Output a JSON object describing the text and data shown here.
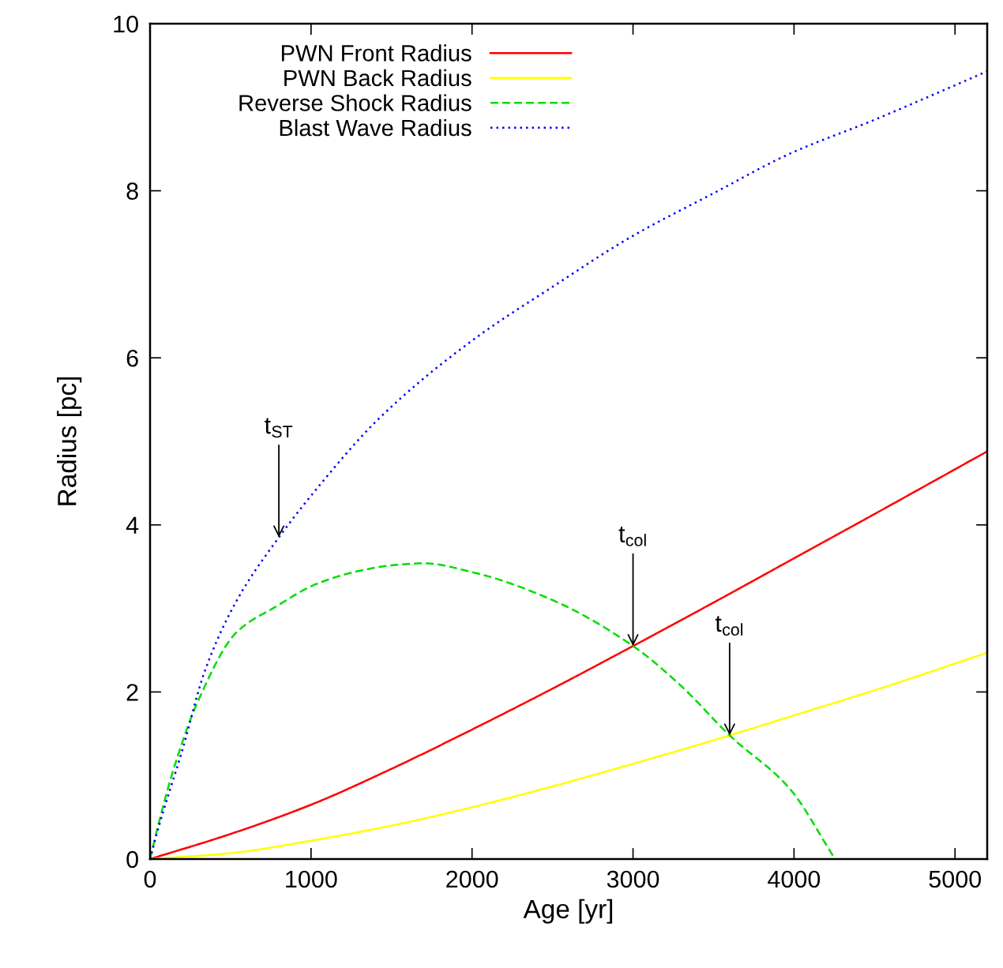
{
  "chart_data": {
    "type": "line",
    "xlabel": "Age [yr]",
    "ylabel": "Radius [pc]",
    "xlim": [
      0,
      5200
    ],
    "ylim": [
      0,
      10
    ],
    "xticks": [
      0,
      1000,
      2000,
      3000,
      4000,
      5000
    ],
    "yticks": [
      0,
      2,
      4,
      6,
      8,
      10
    ],
    "grid": false,
    "legend": "top left",
    "marker": "none",
    "series": [
      {
        "name": "PWN Front Radius",
        "color": "#ff0000",
        "line_style": "solid",
        "x": [
          0,
          500,
          1000,
          1500,
          2000,
          2500,
          3000,
          3500,
          4000,
          4500,
          5200
        ],
        "values": [
          0,
          0.3,
          0.65,
          1.08,
          1.55,
          2.04,
          2.55,
          3.07,
          3.6,
          4.13,
          4.88
        ]
      },
      {
        "name": "PWN Back Radius",
        "color": "#ffff00",
        "line_style": "solid",
        "x": [
          0,
          500,
          1000,
          1500,
          2000,
          2500,
          3000,
          3600,
          4000,
          4500,
          5200
        ],
        "values": [
          0,
          0.07,
          0.22,
          0.4,
          0.62,
          0.87,
          1.14,
          1.48,
          1.72,
          2.02,
          2.47
        ]
      },
      {
        "name": "Reverse Shock Radius",
        "color": "#00dd00",
        "line_style": "dashed",
        "x": [
          0,
          50,
          150,
          300,
          540,
          780,
          1030,
          1300,
          1520,
          1700,
          2010,
          2500,
          3000,
          3300,
          3600,
          3970,
          4255
        ],
        "values": [
          0,
          0.4,
          1.1,
          1.9,
          2.72,
          3.02,
          3.29,
          3.45,
          3.52,
          3.54,
          3.43,
          3.1,
          2.55,
          2.07,
          1.48,
          0.85,
          0
        ]
      },
      {
        "name": "Blast Wave Radius",
        "color": "#0000ff",
        "line_style": "dotted",
        "x": [
          0,
          50,
          200,
          340,
          540,
          800,
          1030,
          1420,
          2010,
          2500,
          2990,
          3500,
          3970,
          4500,
          5200
        ],
        "values": [
          0,
          0.36,
          1.3,
          2.25,
          3.1,
          3.85,
          4.42,
          5.27,
          6.22,
          6.85,
          7.45,
          7.97,
          8.44,
          8.85,
          9.43
        ]
      }
    ],
    "annotations": [
      {
        "text": "t$_{ST}$",
        "x": 800,
        "y": 3.85
      },
      {
        "text": "t$_{col}$",
        "x": 3000,
        "y": 2.55
      },
      {
        "text": "t$_{col}$",
        "x": 3600,
        "y": 1.48
      }
    ]
  }
}
